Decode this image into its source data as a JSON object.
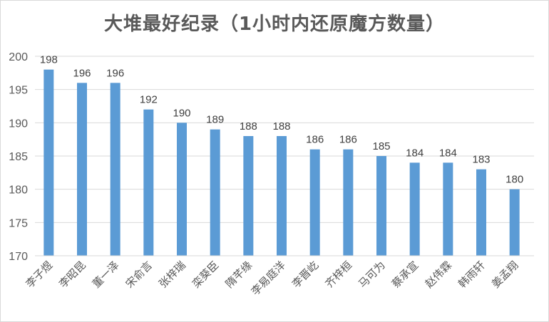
{
  "chart_data": {
    "type": "bar",
    "title": "大堆最好纪录（1小时内还原魔方数量）",
    "categories": [
      "李子煜",
      "李昭昆",
      "董一泽",
      "宋俞言",
      "张梓瑞",
      "栾葵臣",
      "隋芊缘",
      "李易庭洋",
      "李晋屹",
      "齐梓桓",
      "马可为",
      "蔡承宣",
      "赵伟霖",
      "韩雨轩",
      "姜孟翔"
    ],
    "values": [
      198,
      196,
      196,
      192,
      190,
      189,
      188,
      188,
      186,
      186,
      185,
      184,
      184,
      183,
      180
    ],
    "ylim": [
      170,
      200
    ],
    "yticks": [
      170,
      175,
      180,
      185,
      190,
      195,
      200
    ],
    "grid": true,
    "legend": "none",
    "colors": {
      "bar": "#5b9bd5",
      "grid": "#d9d9d9",
      "text": "#595959"
    }
  }
}
